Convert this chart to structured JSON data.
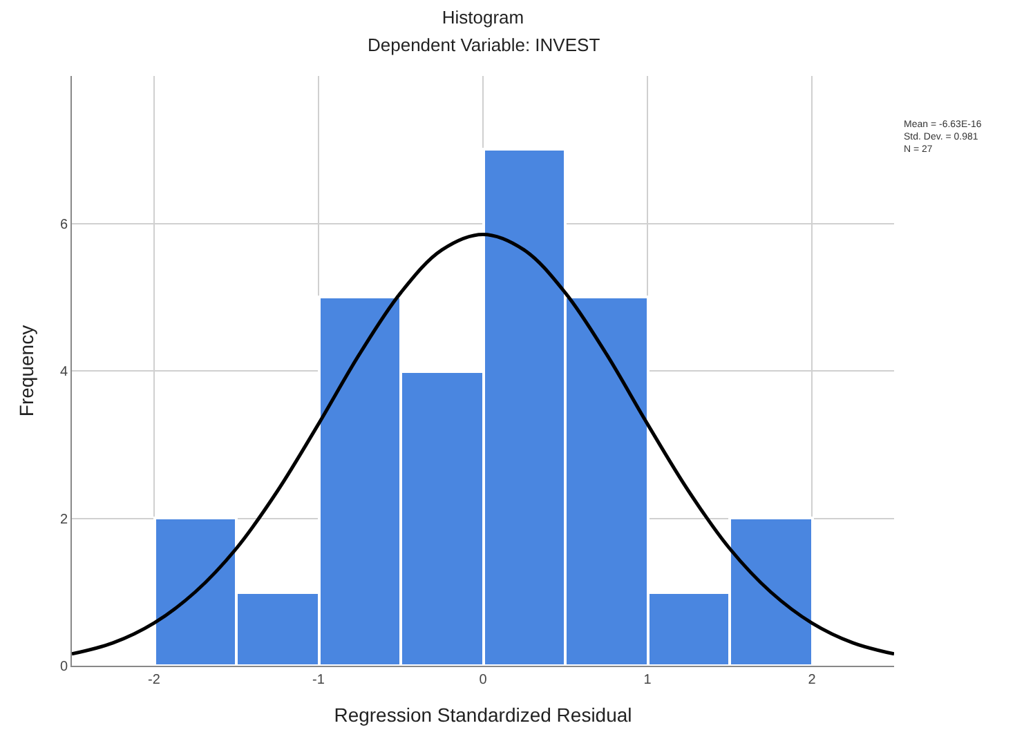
{
  "chart_data": {
    "type": "histogram",
    "title": "Histogram",
    "subtitle": "Dependent Variable: INVEST",
    "xlabel": "Regression Standardized Residual",
    "ylabel": "Frequency",
    "bins": [
      -2,
      -1.5,
      -1,
      -0.5,
      0,
      0.5,
      1,
      1.5,
      2
    ],
    "values": [
      2,
      1,
      5,
      4,
      7,
      5,
      1,
      2
    ],
    "color": "#4a86e0",
    "series": [
      {
        "type": "line",
        "color": "#000000",
        "x": [
          -2.5,
          -2.25,
          -2,
          -1.75,
          -1.5,
          -1.25,
          -1,
          -0.75,
          -0.5,
          -0.25,
          0,
          0.25,
          0.5,
          0.75,
          1,
          1.25,
          1.5,
          1.75,
          2,
          2.25,
          2.5
        ],
        "values": [
          0.16,
          0.31,
          0.58,
          1.0,
          1.59,
          2.37,
          3.28,
          4.23,
          5.06,
          5.64,
          5.85,
          5.64,
          5.06,
          4.23,
          3.28,
          2.37,
          1.59,
          1.0,
          0.58,
          0.31,
          0.16
        ]
      }
    ],
    "xlim": [
      -2.5,
      2.5
    ],
    "xticks": [
      {
        "value": -2,
        "label": "-2"
      },
      {
        "value": -1,
        "label": "-1"
      },
      {
        "value": 0,
        "label": "0"
      },
      {
        "value": 1,
        "label": "1"
      },
      {
        "value": 2,
        "label": "2"
      }
    ],
    "ylim": [
      0,
      8
    ],
    "yticks": [
      0,
      2,
      4,
      6
    ],
    "grid": true,
    "annotations": [
      "Mean = -6.63E-16",
      "Std. Dev. = 0.981",
      "N = 27"
    ]
  }
}
